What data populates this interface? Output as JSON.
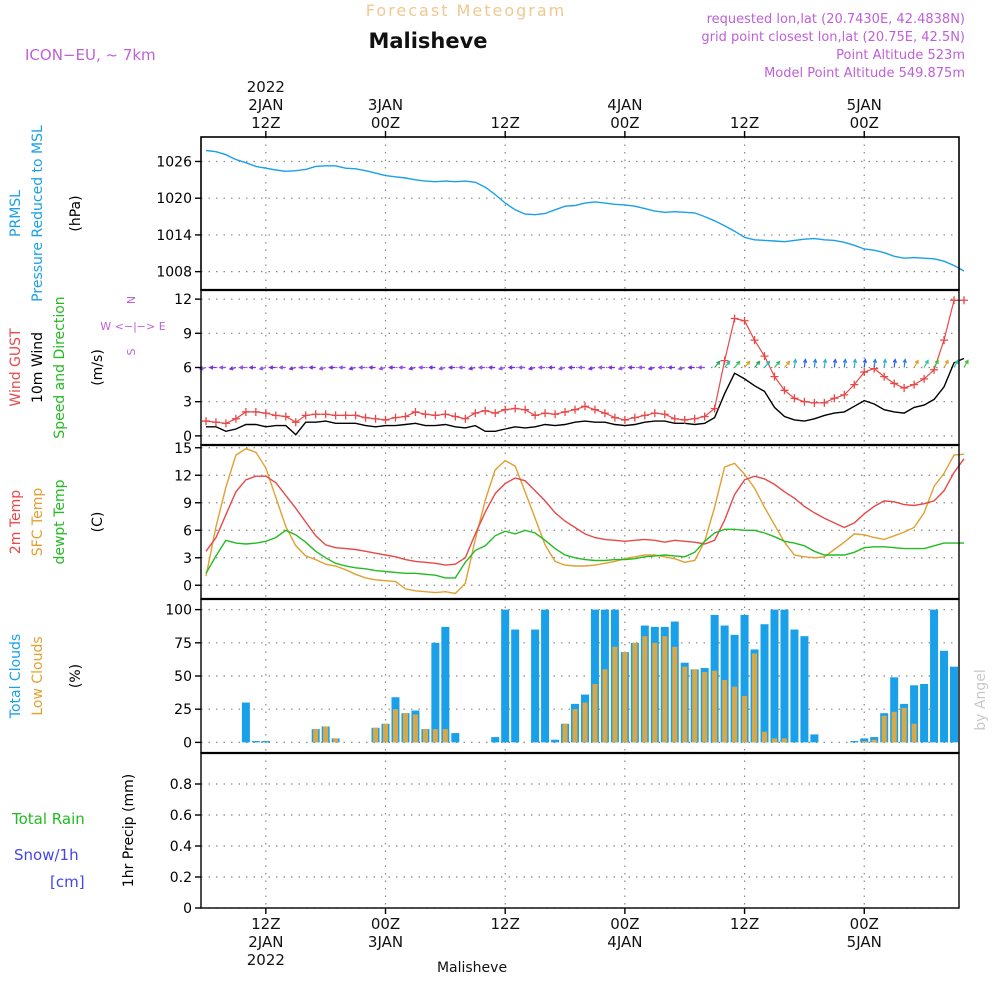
{
  "header": {
    "product": "Forecast Meteogram",
    "location": "Malisheve",
    "model": "ICON−EU, ~ 7km",
    "requested": "requested lon,lat (20.7430E, 42.4838N)",
    "gridpoint": "grid point closest lon,lat (20.75E, 42.5N)",
    "point_alt": "Point Altitude 523m",
    "model_alt": "Model Point Altitude 549.875m",
    "footer": "Malisheve",
    "watermark": "by Angel"
  },
  "time_axis": {
    "top": [
      {
        "x": 6,
        "lines": [
          "2022",
          "2JAN",
          "12Z"
        ]
      },
      {
        "x": 18,
        "lines": [
          "3JAN",
          "00Z"
        ]
      },
      {
        "x": 30,
        "lines": [
          "12Z"
        ]
      },
      {
        "x": 42,
        "lines": [
          "4JAN",
          "00Z"
        ]
      },
      {
        "x": 54,
        "lines": [
          "12Z"
        ]
      },
      {
        "x": 66,
        "lines": [
          "5JAN",
          "00Z"
        ]
      }
    ],
    "bottom": [
      {
        "x": 6,
        "lines": [
          "12Z",
          "2JAN",
          "2022"
        ]
      },
      {
        "x": 18,
        "lines": [
          "00Z",
          "3JAN"
        ]
      },
      {
        "x": 30,
        "lines": [
          "12Z"
        ]
      },
      {
        "x": 42,
        "lines": [
          "00Z",
          "4JAN"
        ]
      },
      {
        "x": 54,
        "lines": [
          "12Z"
        ]
      },
      {
        "x": 66,
        "lines": [
          "00Z",
          "5JAN"
        ]
      }
    ],
    "range": [
      0.5,
      76.5
    ]
  },
  "panels": {
    "pressure": {
      "labels": [
        {
          "t": "PRMSL",
          "c": "#1aa0e8"
        },
        {
          "t": "Pressure Reduced to MSL",
          "c": "#1aa0e8"
        },
        {
          "t": "(hPa)",
          "c": "#000"
        }
      ]
    },
    "wind": {
      "labels": [
        {
          "t": "Wind GUST",
          "c": "#e84848"
        },
        {
          "t": "10m Wind",
          "c": "#000"
        },
        {
          "t": "Speed and Direction",
          "c": "#22bb22"
        },
        {
          "t": "(m/s)",
          "c": "#000"
        }
      ],
      "compass": [
        "N",
        "S",
        "W <−|−> E",
        "^",
        "|",
        "<",
        "v"
      ]
    },
    "temperature": {
      "labels": [
        {
          "t": "2m Temp",
          "c": "#e84848"
        },
        {
          "t": "SFC Temp",
          "c": "#e0a030"
        },
        {
          "t": "dewpt Temp",
          "c": "#22bb22"
        },
        {
          "t": "(C)",
          "c": "#000"
        }
      ]
    },
    "clouds": {
      "labels": [
        {
          "t": "Total Clouds",
          "c": "#1aa0e8"
        },
        {
          "t": "Low Clouds",
          "c": "#e0a030"
        },
        {
          "t": "(%)",
          "c": "#000"
        }
      ]
    },
    "precip": {
      "labels": [
        {
          "t": "1hr Precip (mm)",
          "c": "#000"
        }
      ],
      "legend": [
        {
          "t": "Total  Rain",
          "c": "#22bb22"
        },
        {
          "t": "Snow/1h",
          "c": "#4444ee"
        },
        {
          "t": "[cm]",
          "c": "#4444ee"
        }
      ]
    }
  },
  "colors": {
    "pressure": "#1aa0e8",
    "gust": "#e84848",
    "wind": "#000000",
    "t2m": "#e84848",
    "tsfc": "#e0a030",
    "dewpt": "#22bb22",
    "total_clouds": "#1aa0e8",
    "low_clouds": "#d8a848",
    "grid": "#888888"
  },
  "chart_data": [
    {
      "type": "line",
      "ylim": [
        1005,
        1030
      ],
      "yticks": [
        1008,
        1014,
        1020,
        1026
      ],
      "series": [
        {
          "name": "PRMSL",
          "values": [
            1027.8,
            1027.6,
            1027.1,
            1026.3,
            1025.8,
            1025.2,
            1024.9,
            1024.6,
            1024.4,
            1024.5,
            1024.7,
            1025.2,
            1025.3,
            1025.3,
            1024.9,
            1024.8,
            1024.5,
            1024.1,
            1023.7,
            1023.5,
            1023.3,
            1023.0,
            1022.8,
            1022.7,
            1022.8,
            1022.7,
            1022.8,
            1022.6,
            1021.8,
            1020.6,
            1019.2,
            1018.1,
            1017.4,
            1017.3,
            1017.5,
            1018.1,
            1018.7,
            1018.8,
            1019.2,
            1019.4,
            1019.2,
            1019.0,
            1018.9,
            1018.7,
            1018.3,
            1017.9,
            1017.7,
            1017.8,
            1017.7,
            1017.6,
            1017.0,
            1016.3,
            1015.5,
            1014.6,
            1013.6,
            1013.2,
            1013.1,
            1013.0,
            1012.9,
            1013.1,
            1013.3,
            1013.4,
            1013.2,
            1013.1,
            1012.8,
            1012.3,
            1011.7,
            1011.5,
            1011.1,
            1010.5,
            1010.2,
            1010.3,
            1010.2,
            1010.1,
            1009.7,
            1009.0,
            1008.1
          ]
        }
      ]
    },
    {
      "type": "line",
      "ylim": [
        -0.8,
        12.8
      ],
      "yticks": [
        0,
        3,
        6,
        9,
        12
      ],
      "series": [
        {
          "name": "Wind GUST",
          "values": [
            1.3,
            1.2,
            1.1,
            1.5,
            2.1,
            2.1,
            2.0,
            1.8,
            1.7,
            1.2,
            1.8,
            1.9,
            1.9,
            1.8,
            1.8,
            1.8,
            1.6,
            1.5,
            1.4,
            1.6,
            1.7,
            2.1,
            1.9,
            1.8,
            1.9,
            1.7,
            1.5,
            2.0,
            2.2,
            2.0,
            2.3,
            2.4,
            2.3,
            1.8,
            2.0,
            1.9,
            2.1,
            2.3,
            2.6,
            2.3,
            2.0,
            1.6,
            1.4,
            1.6,
            1.8,
            2.0,
            1.9,
            1.5,
            1.4,
            1.5,
            1.7,
            2.4,
            6.6,
            10.3,
            10.1,
            8.4,
            7.0,
            5.2,
            4.0,
            3.3,
            3.0,
            2.9,
            2.9,
            3.3,
            3.6,
            4.5,
            5.6,
            5.9,
            5.2,
            4.6,
            4.2,
            4.5,
            5.0,
            5.8,
            8.4,
            11.9,
            11.9
          ]
        },
        {
          "name": "10m Wind",
          "values": [
            0.8,
            0.8,
            0.4,
            0.6,
            1.0,
            1.0,
            0.8,
            0.9,
            0.9,
            0.1,
            1.2,
            1.2,
            1.3,
            1.1,
            1.1,
            1.1,
            0.9,
            0.8,
            0.9,
            0.9,
            1.0,
            1.1,
            0.9,
            0.9,
            1.0,
            0.8,
            0.7,
            0.9,
            0.4,
            0.4,
            0.6,
            0.8,
            0.7,
            0.8,
            1.0,
            0.9,
            1.0,
            1.2,
            1.3,
            1.2,
            1.2,
            1.0,
            0.9,
            1.0,
            1.2,
            1.3,
            1.3,
            1.1,
            1.1,
            1.0,
            1.1,
            1.6,
            3.7,
            5.5,
            5.0,
            4.4,
            3.9,
            2.5,
            1.7,
            1.4,
            1.3,
            1.5,
            1.8,
            2.0,
            2.1,
            2.6,
            3.1,
            2.8,
            2.3,
            2.1,
            2.0,
            2.5,
            2.7,
            3.2,
            4.3,
            6.4,
            6.8
          ]
        }
      ]
    },
    {
      "type": "line",
      "ylim": [
        -1.5,
        15.3
      ],
      "yticks": [
        0,
        3,
        6,
        9,
        12,
        15
      ],
      "series": [
        {
          "name": "2m Temp",
          "values": [
            3.7,
            5.2,
            7.7,
            10.2,
            11.5,
            11.9,
            11.9,
            11.2,
            9.8,
            8.4,
            6.9,
            5.4,
            4.4,
            4.1,
            4.0,
            3.9,
            3.7,
            3.5,
            3.3,
            3.1,
            2.8,
            2.6,
            2.5,
            2.4,
            2.2,
            2.3,
            3.0,
            5.6,
            8.0,
            10.0,
            11.1,
            11.7,
            11.4,
            10.3,
            9.2,
            7.9,
            7.0,
            6.3,
            5.6,
            5.2,
            5.0,
            4.9,
            4.8,
            4.9,
            5.0,
            4.9,
            4.7,
            4.9,
            4.8,
            4.7,
            4.5,
            4.9,
            7.1,
            9.9,
            11.5,
            11.9,
            11.6,
            11.0,
            10.2,
            9.5,
            8.6,
            7.9,
            7.3,
            6.8,
            6.3,
            6.8,
            7.8,
            8.6,
            9.2,
            9.1,
            8.8,
            8.7,
            8.9,
            9.2,
            10.3,
            12.3,
            13.8
          ]
        },
        {
          "name": "SFC Temp",
          "values": [
            1.0,
            6.4,
            10.7,
            14.2,
            14.9,
            14.5,
            12.8,
            9.6,
            6.4,
            4.3,
            3.2,
            2.8,
            2.3,
            2.1,
            1.7,
            1.2,
            0.8,
            0.6,
            0.5,
            0.4,
            -0.4,
            -0.6,
            -0.7,
            -0.8,
            -0.7,
            -0.9,
            0.2,
            5.0,
            9.3,
            12.6,
            13.6,
            13.0,
            10.2,
            7.3,
            4.4,
            2.6,
            2.2,
            2.1,
            2.1,
            2.2,
            2.4,
            2.6,
            2.9,
            3.1,
            3.3,
            3.3,
            3.1,
            2.9,
            2.5,
            2.7,
            4.8,
            8.5,
            12.9,
            13.3,
            12.1,
            10.6,
            8.5,
            6.6,
            4.7,
            3.3,
            3.1,
            3.0,
            3.1,
            3.9,
            4.7,
            5.6,
            5.5,
            5.2,
            5.0,
            5.4,
            5.8,
            6.3,
            7.9,
            10.8,
            12.2,
            14.2,
            14.3
          ]
        },
        {
          "name": "dewpt Temp",
          "values": [
            1.3,
            3.2,
            4.9,
            4.6,
            4.5,
            4.6,
            4.8,
            5.2,
            6.0,
            5.5,
            4.7,
            3.7,
            3.0,
            2.4,
            2.1,
            1.9,
            1.8,
            1.6,
            1.5,
            1.4,
            1.3,
            1.3,
            1.2,
            1.1,
            0.8,
            0.8,
            2.5,
            3.8,
            4.3,
            5.4,
            5.9,
            5.6,
            6.0,
            5.7,
            4.9,
            4.0,
            3.3,
            3.0,
            2.8,
            2.7,
            2.7,
            2.8,
            2.8,
            2.9,
            3.1,
            3.2,
            3.3,
            3.2,
            3.1,
            3.6,
            4.8,
            5.7,
            6.1,
            6.1,
            6.0,
            6.0,
            5.7,
            5.3,
            4.8,
            4.6,
            4.3,
            3.7,
            3.3,
            3.3,
            3.3,
            3.6,
            4.1,
            4.2,
            4.2,
            4.1,
            4.0,
            4.0,
            4.0,
            4.3,
            4.6,
            4.6,
            4.6
          ]
        }
      ]
    },
    {
      "type": "bar",
      "ylim": [
        -8,
        108
      ],
      "yticks": [
        0,
        25,
        50,
        75,
        100
      ],
      "series": [
        {
          "name": "Total Clouds",
          "values": [
            0,
            0,
            0,
            0,
            30,
            1,
            1,
            0,
            0,
            0,
            0,
            10,
            12,
            3,
            0,
            0,
            0,
            11,
            14,
            34,
            22,
            24,
            10,
            75,
            87,
            7,
            0,
            0,
            0,
            4,
            100,
            85,
            0,
            85,
            100,
            2,
            14,
            29,
            36,
            100,
            100,
            100,
            68,
            75,
            88,
            87,
            87,
            91,
            60,
            55,
            56,
            96,
            88,
            81,
            96,
            70,
            89,
            100,
            100,
            85,
            80,
            6,
            0,
            0,
            0,
            1,
            3,
            4,
            22,
            49,
            29,
            43,
            44,
            100,
            69,
            57,
            0
          ]
        },
        {
          "name": "Low Clouds",
          "values": [
            0,
            0,
            0,
            0,
            0,
            0,
            0,
            0,
            0,
            0,
            0,
            10,
            12,
            3,
            0,
            0,
            0,
            11,
            14,
            25,
            22,
            21,
            10,
            10,
            10,
            0,
            0,
            0,
            0,
            0,
            0,
            0,
            0,
            0,
            0,
            0,
            14,
            25,
            30,
            44,
            55,
            72,
            68,
            75,
            80,
            75,
            80,
            72,
            57,
            55,
            53,
            54,
            47,
            42,
            35,
            67,
            8,
            3,
            3,
            0,
            0,
            0,
            0,
            0,
            0,
            0,
            1,
            2,
            20,
            23,
            26,
            14,
            0,
            0,
            0,
            0,
            0
          ]
        }
      ]
    },
    {
      "type": "line",
      "ylim": [
        0,
        1
      ],
      "yticks": [
        0,
        0.2,
        0.4,
        0.6,
        0.8
      ],
      "series": [
        {
          "name": "Total Rain",
          "values": [
            0,
            0,
            0,
            0,
            0,
            0,
            0,
            0,
            0,
            0,
            0,
            0,
            0,
            0,
            0,
            0,
            0,
            0,
            0,
            0,
            0,
            0,
            0,
            0,
            0,
            0,
            0,
            0,
            0,
            0,
            0,
            0,
            0,
            0,
            0,
            0,
            0,
            0,
            0,
            0,
            0,
            0,
            0,
            0,
            0,
            0,
            0,
            0,
            0,
            0,
            0,
            0,
            0,
            0,
            0,
            0,
            0,
            0,
            0,
            0,
            0,
            0,
            0,
            0,
            0,
            0,
            0,
            0,
            0,
            0,
            0,
            0,
            0,
            0,
            0,
            0,
            0
          ]
        }
      ]
    }
  ]
}
